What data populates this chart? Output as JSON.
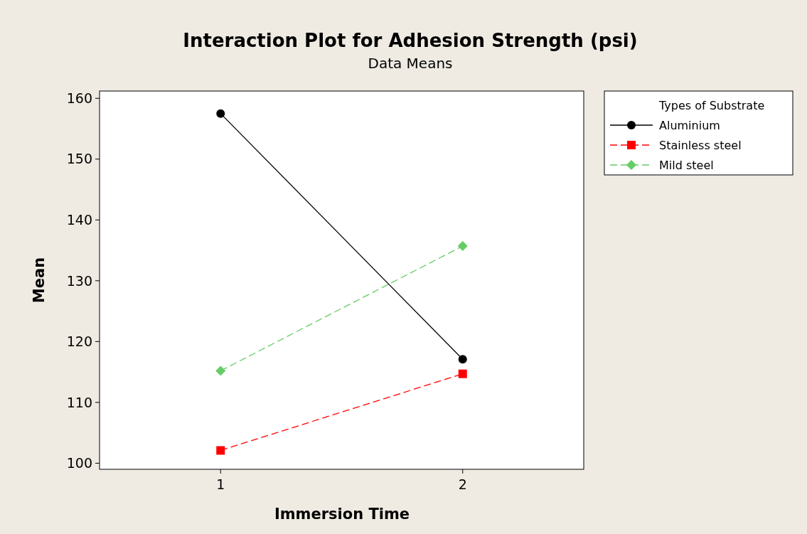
{
  "chart_data": {
    "type": "line",
    "title": "Interaction Plot for Adhesion Strength (psi)",
    "subtitle": "Data Means",
    "xlabel": "Immersion Time",
    "ylabel": "Mean",
    "legend_title": "Types of Substrate",
    "x": [
      1,
      2
    ],
    "xlim": [
      0.5,
      2.5
    ],
    "xticks": [
      1,
      2
    ],
    "ylim": [
      99,
      161.2
    ],
    "yticks": [
      100,
      110,
      120,
      130,
      140,
      150,
      160
    ],
    "grid": false,
    "legend": "top right",
    "series": [
      {
        "name": "Aluminium",
        "color": "#000000",
        "values": [
          157.5,
          117.1
        ],
        "marker": "circle",
        "line_style": "solid"
      },
      {
        "name": "Stainless steel",
        "color": "#ff0000",
        "values": [
          102.1,
          114.7
        ],
        "marker": "square",
        "line_style": "dashed"
      },
      {
        "name": "Mild steel",
        "color": "#66cc66",
        "values": [
          115.2,
          135.7
        ],
        "marker": "diamond",
        "line_style": "dashed"
      }
    ]
  }
}
